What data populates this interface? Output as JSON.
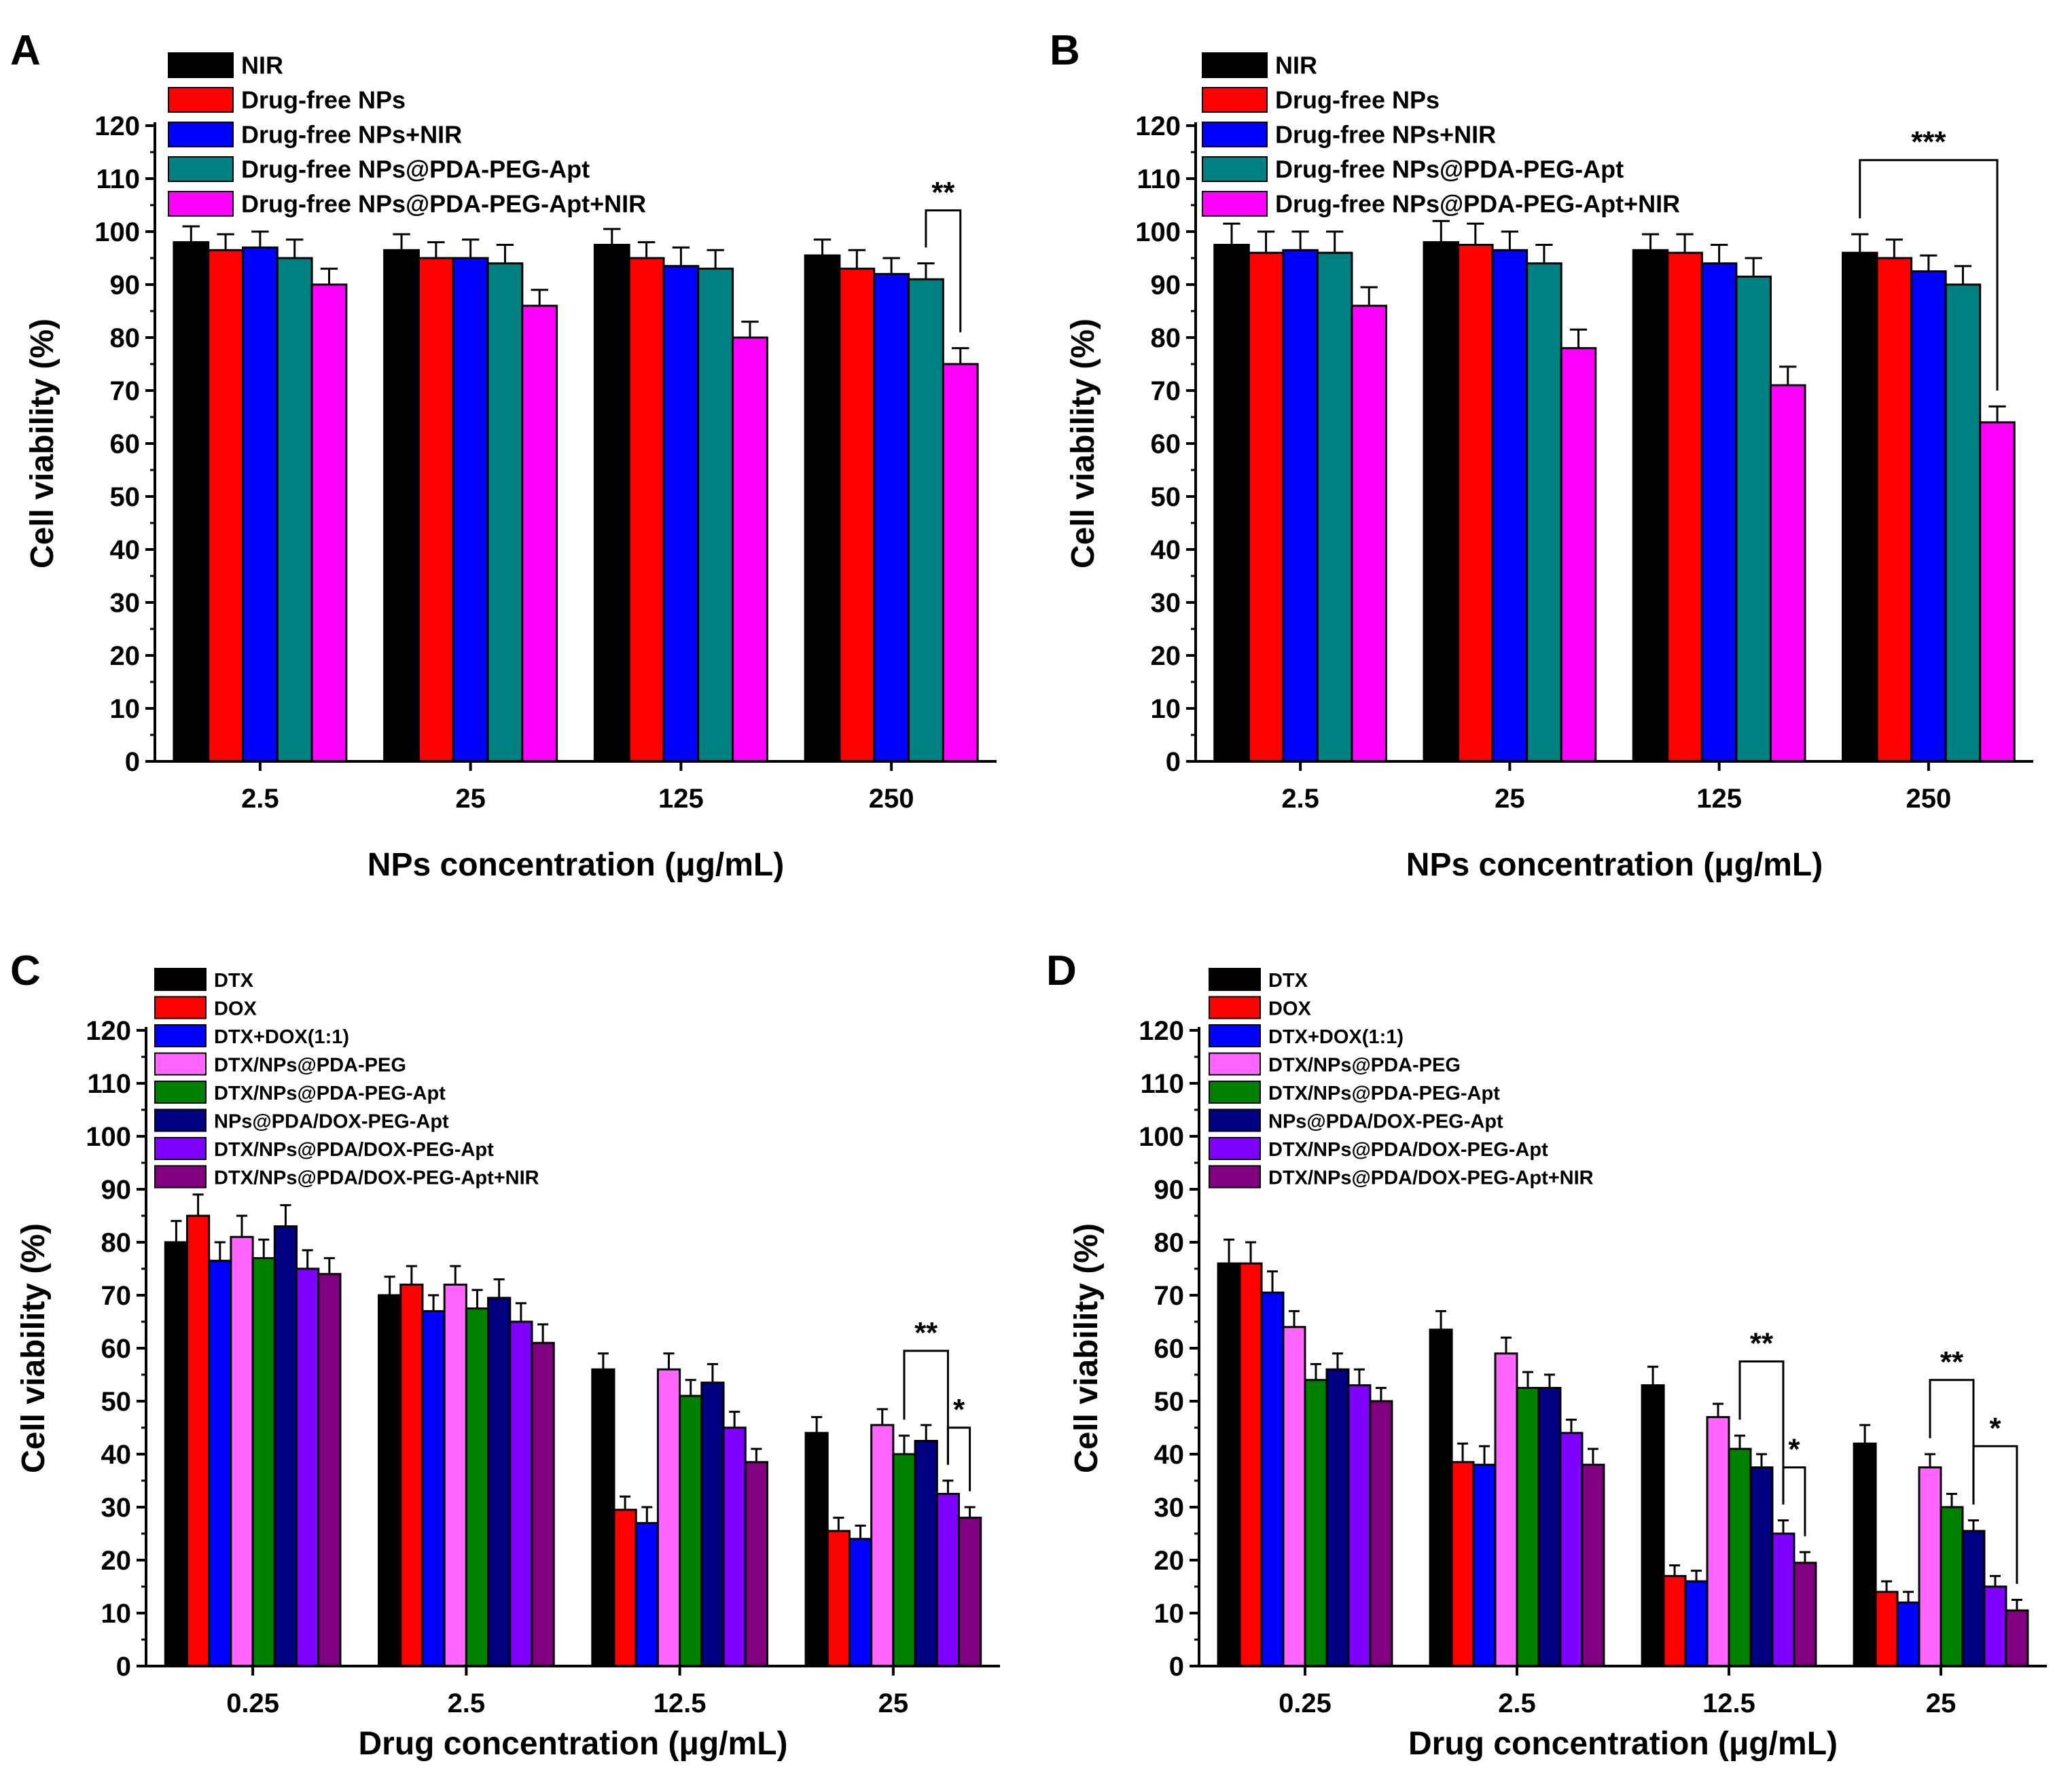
{
  "chart_data": [
    {
      "panel": "A",
      "type": "bar",
      "title": "",
      "xlabel": "NPs concentration (μg/mL)",
      "ylabel": "Cell viability (%)",
      "ylim": [
        0,
        120
      ],
      "yticks": [
        0,
        10,
        20,
        30,
        40,
        50,
        60,
        70,
        80,
        90,
        100,
        110,
        120
      ],
      "categories": [
        "2.5",
        "25",
        "125",
        "250"
      ],
      "series": [
        {
          "name": "NIR",
          "color": "#000000",
          "values": [
            98,
            96.5,
            97.5,
            95.5
          ],
          "errors": [
            3,
            3,
            3,
            3
          ]
        },
        {
          "name": "Drug-free NPs",
          "color": "#ff0000",
          "values": [
            96.5,
            95,
            95,
            93
          ],
          "errors": [
            3,
            3,
            3,
            3.5
          ]
        },
        {
          "name": "Drug-free NPs+NIR",
          "color": "#0000ff",
          "values": [
            97,
            95,
            93.5,
            92
          ],
          "errors": [
            3,
            3.5,
            3.5,
            3
          ]
        },
        {
          "name": "Drug-free NPs@PDA-PEG-Apt",
          "color": "#008080",
          "values": [
            95,
            94,
            93,
            91
          ],
          "errors": [
            3.5,
            3.5,
            3.5,
            3
          ]
        },
        {
          "name": "Drug-free NPs@PDA-PEG-Apt+NIR",
          "color": "#ff00ff",
          "values": [
            90,
            86,
            80,
            75
          ],
          "errors": [
            3,
            3,
            3,
            3
          ]
        }
      ],
      "annotations": [
        {
          "group": 3,
          "from": 3,
          "to": 4,
          "label": "**"
        }
      ]
    },
    {
      "panel": "B",
      "type": "bar",
      "title": "",
      "xlabel": "NPs concentration (μg/mL)",
      "ylabel": "Cell viability (%)",
      "ylim": [
        0,
        120
      ],
      "yticks": [
        0,
        10,
        20,
        30,
        40,
        50,
        60,
        70,
        80,
        90,
        100,
        110,
        120
      ],
      "categories": [
        "2.5",
        "25",
        "125",
        "250"
      ],
      "series": [
        {
          "name": "NIR",
          "color": "#000000",
          "values": [
            97.5,
            98,
            96.5,
            96
          ],
          "errors": [
            4,
            4,
            3,
            3.5
          ]
        },
        {
          "name": "Drug-free NPs",
          "color": "#ff0000",
          "values": [
            96,
            97.5,
            96,
            95
          ],
          "errors": [
            4,
            4,
            3.5,
            3.5
          ]
        },
        {
          "name": "Drug-free NPs+NIR",
          "color": "#0000ff",
          "values": [
            96.5,
            96.5,
            94,
            92.5
          ],
          "errors": [
            3.5,
            3.5,
            3.5,
            3
          ]
        },
        {
          "name": "Drug-free NPs@PDA-PEG-Apt",
          "color": "#008080",
          "values": [
            96,
            94,
            91.5,
            90
          ],
          "errors": [
            4,
            3.5,
            3.5,
            3.5
          ]
        },
        {
          "name": "Drug-free NPs@PDA-PEG-Apt+NIR",
          "color": "#ff00ff",
          "values": [
            86,
            78,
            71,
            64
          ],
          "errors": [
            3.5,
            3.5,
            3.5,
            3
          ]
        }
      ],
      "annotations": [
        {
          "group": 3,
          "from": 0,
          "to": 4,
          "label": "***"
        }
      ]
    },
    {
      "panel": "C",
      "type": "bar",
      "title": "",
      "xlabel": "Drug concentration (μg/mL)",
      "ylabel": "Cell viability (%)",
      "ylim": [
        0,
        120
      ],
      "yticks": [
        0,
        10,
        20,
        30,
        40,
        50,
        60,
        70,
        80,
        90,
        100,
        110,
        120
      ],
      "categories": [
        "0.25",
        "2.5",
        "12.5",
        "25"
      ],
      "series": [
        {
          "name": "DTX",
          "color": "#000000",
          "values": [
            80,
            70,
            56,
            44
          ],
          "errors": [
            4,
            3.5,
            3,
            3
          ]
        },
        {
          "name": "DOX",
          "color": "#ff0000",
          "values": [
            85,
            72,
            29.5,
            25.5
          ],
          "errors": [
            4,
            3.5,
            2.5,
            2.5
          ]
        },
        {
          "name": "DTX+DOX(1:1)",
          "color": "#0000ff",
          "values": [
            76.5,
            67,
            27,
            24
          ],
          "errors": [
            3.5,
            3,
            3,
            2.5
          ]
        },
        {
          "name": "DTX/NPs@PDA-PEG",
          "color": "#ff66ff",
          "values": [
            81,
            72,
            56,
            45.5
          ],
          "errors": [
            4,
            3.5,
            3,
            3
          ]
        },
        {
          "name": "DTX/NPs@PDA-PEG-Apt",
          "color": "#008000",
          "values": [
            77,
            67.5,
            51,
            40
          ],
          "errors": [
            3.5,
            3.5,
            3,
            3.5
          ]
        },
        {
          "name": "NPs@PDA/DOX-PEG-Apt",
          "color": "#000080",
          "values": [
            83,
            69.5,
            53.5,
            42.5
          ],
          "errors": [
            4,
            3.5,
            3.5,
            3
          ]
        },
        {
          "name": "DTX/NPs@PDA/DOX-PEG-Apt",
          "color": "#8000ff",
          "values": [
            75,
            65,
            45,
            32.5
          ],
          "errors": [
            3.5,
            3.5,
            3,
            2.5
          ]
        },
        {
          "name": "DTX/NPs@PDA/DOX-PEG-Apt+NIR",
          "color": "#800080",
          "values": [
            74,
            61,
            38.5,
            28
          ],
          "errors": [
            3,
            3.5,
            2.5,
            2
          ]
        }
      ],
      "annotations": [
        {
          "group": 3,
          "from": 4,
          "to": 6,
          "label": "**"
        },
        {
          "group": 3,
          "from": 6,
          "to": 7,
          "label": "*"
        }
      ]
    },
    {
      "panel": "D",
      "type": "bar",
      "title": "",
      "xlabel": "Drug concentration (μg/mL)",
      "ylabel": "Cell viability (%)",
      "ylim": [
        0,
        120
      ],
      "yticks": [
        0,
        10,
        20,
        30,
        40,
        50,
        60,
        70,
        80,
        90,
        100,
        110,
        120
      ],
      "categories": [
        "0.25",
        "2.5",
        "12.5",
        "25"
      ],
      "series": [
        {
          "name": "DTX",
          "color": "#000000",
          "values": [
            76,
            63.5,
            53,
            42
          ],
          "errors": [
            4.5,
            3.5,
            3.5,
            3.5
          ]
        },
        {
          "name": "DOX",
          "color": "#ff0000",
          "values": [
            76,
            38.5,
            17,
            14
          ],
          "errors": [
            4,
            3.5,
            2,
            2
          ]
        },
        {
          "name": "DTX+DOX(1:1)",
          "color": "#0000ff",
          "values": [
            70.5,
            38,
            16,
            12
          ],
          "errors": [
            4,
            3.5,
            2,
            2
          ]
        },
        {
          "name": "DTX/NPs@PDA-PEG",
          "color": "#ff66ff",
          "values": [
            64,
            59,
            47,
            37.5
          ],
          "errors": [
            3,
            3,
            2.5,
            2.5
          ]
        },
        {
          "name": "DTX/NPs@PDA-PEG-Apt",
          "color": "#008000",
          "values": [
            54,
            52.5,
            41,
            30
          ],
          "errors": [
            3,
            3,
            2.5,
            2.5
          ]
        },
        {
          "name": "NPs@PDA/DOX-PEG-Apt",
          "color": "#000080",
          "values": [
            56,
            52.5,
            37.5,
            25.5
          ],
          "errors": [
            3,
            2.5,
            2.5,
            2
          ]
        },
        {
          "name": "DTX/NPs@PDA/DOX-PEG-Apt",
          "color": "#8000ff",
          "values": [
            53,
            44,
            25,
            15
          ],
          "errors": [
            3,
            2.5,
            2.5,
            2
          ]
        },
        {
          "name": "DTX/NPs@PDA/DOX-PEG-Apt+NIR",
          "color": "#800080",
          "values": [
            50,
            38,
            19.5,
            10.5
          ],
          "errors": [
            2.5,
            3,
            2,
            2
          ]
        }
      ],
      "annotations": [
        {
          "group": 3,
          "from": 3,
          "to": 5,
          "label": "**"
        },
        {
          "group": 3,
          "from": 5,
          "to": 7,
          "label": "*"
        },
        {
          "group": 2,
          "from": 4,
          "to": 6,
          "label": "**"
        },
        {
          "group": 2,
          "from": 6,
          "to": 7,
          "label": "*"
        }
      ]
    }
  ]
}
